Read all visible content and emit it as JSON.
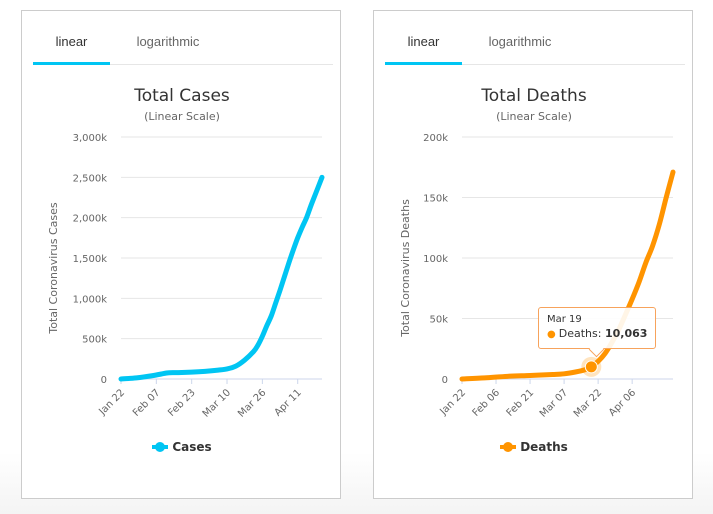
{
  "cards": [
    {
      "tabs": [
        {
          "label": "linear",
          "active": true
        },
        {
          "label": "logarithmic",
          "active": false
        }
      ],
      "legend_label": "Cases"
    },
    {
      "tabs": [
        {
          "label": "linear",
          "active": true
        },
        {
          "label": "logarithmic",
          "active": false
        }
      ],
      "legend_label": "Deaths",
      "tooltip": {
        "date": "Mar 19",
        "series": "Deaths",
        "separator": ":",
        "value": "10,063"
      }
    }
  ],
  "chart_data": [
    {
      "type": "line",
      "title": "Total Cases",
      "subtitle": "(Linear Scale)",
      "xlabel": "",
      "ylabel": "Total Coronavirus Cases",
      "color": "#00c5f3",
      "ylim": [
        0,
        3000000
      ],
      "yticks": [
        0,
        500000,
        1000000,
        1500000,
        2000000,
        2500000,
        3000000
      ],
      "ytick_labels": [
        "0",
        "500k",
        "1,000k",
        "1,500k",
        "2,000k",
        "2,500k",
        "3,000k"
      ],
      "x_start": "Jan 22",
      "xtick_labels": [
        "Jan 22",
        "Feb 07",
        "Feb 23",
        "Mar 10",
        "Mar 26",
        "Apr 11"
      ],
      "xtick_days": [
        0,
        16,
        32,
        48,
        64,
        80
      ],
      "x_range_days": [
        0,
        91
      ],
      "grid": true,
      "legend": "bottom-center",
      "series": [
        {
          "name": "Cases",
          "x_days": [
            0,
            7,
            14,
            20,
            22,
            26,
            32,
            38,
            44,
            48,
            52,
            56,
            60,
            62,
            64,
            66,
            68,
            70,
            72,
            74,
            76,
            78,
            80,
            82,
            84,
            86,
            88,
            91
          ],
          "values": [
            560,
            14000,
            40000,
            71000,
            78000,
            79000,
            85000,
            95000,
            110000,
            125000,
            160000,
            235000,
            340000,
            420000,
            530000,
            660000,
            780000,
            940000,
            1100000,
            1270000,
            1440000,
            1600000,
            1750000,
            1880000,
            2000000,
            2150000,
            2290000,
            2500000
          ]
        }
      ]
    },
    {
      "type": "line",
      "title": "Total Deaths",
      "subtitle": "(Linear Scale)",
      "xlabel": "",
      "ylabel": "Total Coronavirus Deaths",
      "color": "#ff9400",
      "ylim": [
        0,
        200000
      ],
      "yticks": [
        0,
        50000,
        100000,
        150000,
        200000
      ],
      "ytick_labels": [
        "0",
        "50k",
        "100k",
        "150k",
        "200k"
      ],
      "x_start": "Jan 22",
      "xtick_labels": [
        "Jan 22",
        "Feb 06",
        "Feb 21",
        "Mar 07",
        "Mar 22",
        "Apr 06"
      ],
      "xtick_days": [
        0,
        15,
        30,
        45,
        60,
        75
      ],
      "x_range_days": [
        0,
        93
      ],
      "grid": true,
      "legend": "bottom-center",
      "highlight": {
        "x_day": 57,
        "label": "Mar 19",
        "value": 10063
      },
      "series": [
        {
          "name": "Deaths",
          "x_days": [
            0,
            10,
            20,
            30,
            40,
            45,
            50,
            54,
            57,
            60,
            63,
            66,
            69,
            72,
            75,
            78,
            81,
            84,
            87,
            90,
            93
          ],
          "values": [
            17,
            900,
            2200,
            2900,
            3700,
            4300,
            5800,
            7500,
            10063,
            14600,
            21000,
            30000,
            40500,
            53000,
            66000,
            80000,
            96000,
            110000,
            128000,
            150000,
            171000
          ]
        }
      ]
    }
  ]
}
